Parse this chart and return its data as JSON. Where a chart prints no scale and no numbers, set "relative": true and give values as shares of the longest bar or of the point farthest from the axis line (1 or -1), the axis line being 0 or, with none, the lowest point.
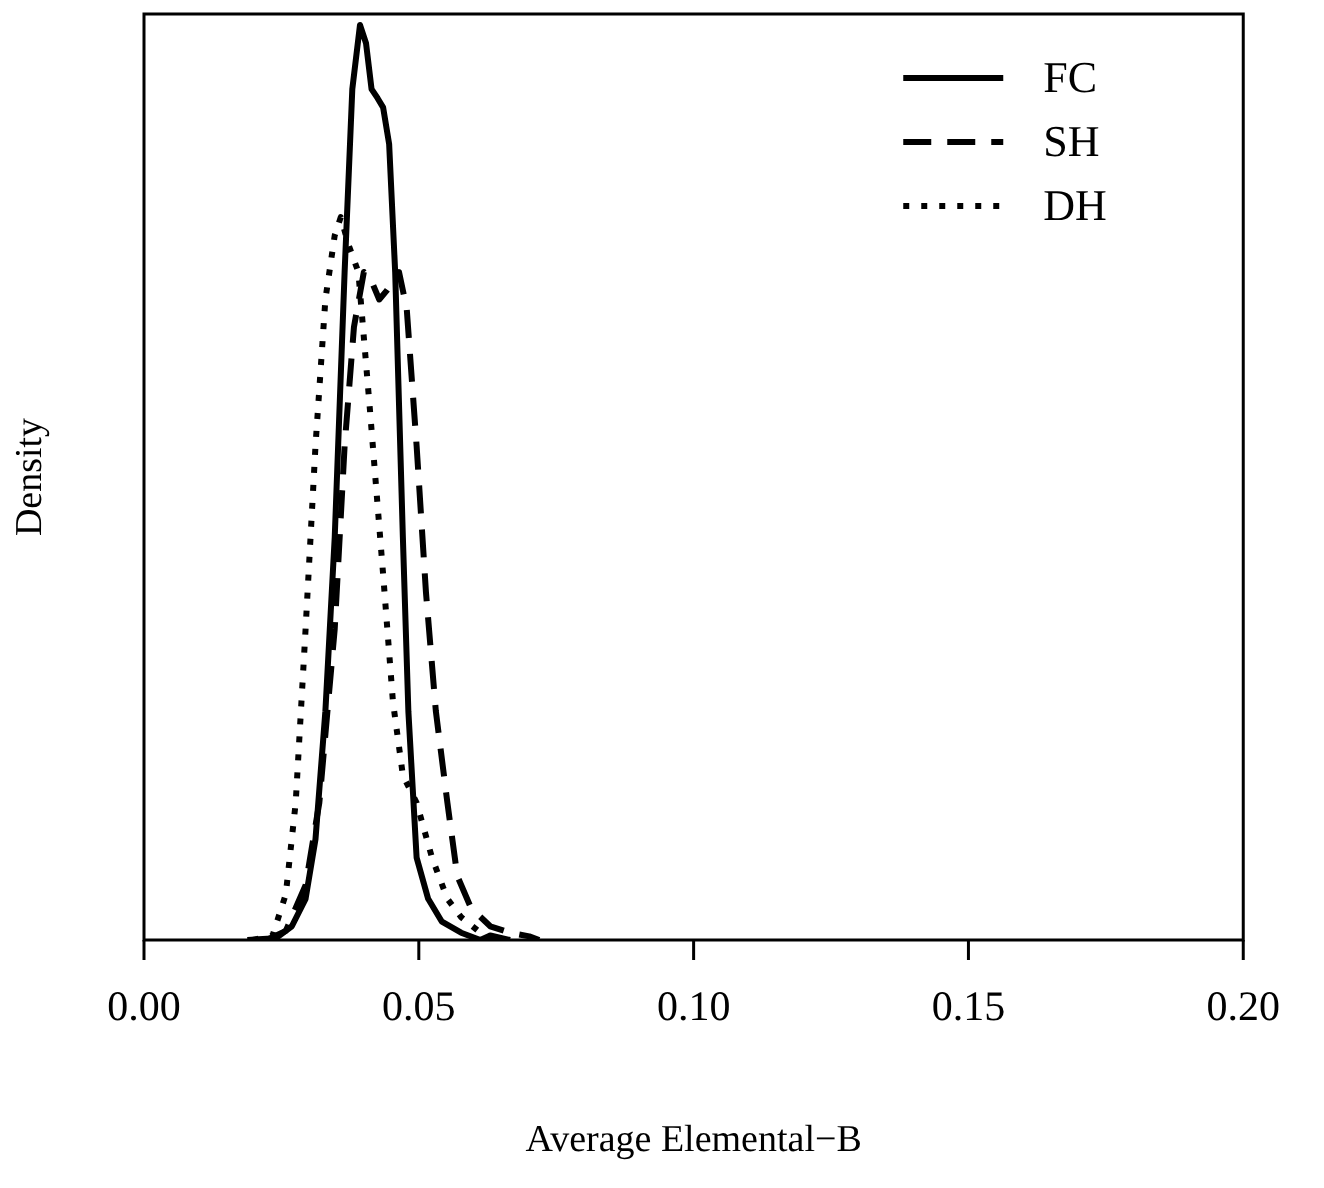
{
  "chart_data": {
    "type": "line",
    "xlabel": "Average Elemental−B",
    "ylabel": "Density",
    "relative": true,
    "xlim": [
      0,
      0.2
    ],
    "xticks": [
      {
        "value": 0,
        "label": "0.00"
      },
      {
        "value": 0.05,
        "label": "0.05"
      },
      {
        "value": 0.1,
        "label": "0.10"
      },
      {
        "value": 0.15,
        "label": "0.15"
      },
      {
        "value": 0.2,
        "label": "0.20"
      }
    ],
    "legend": "top right",
    "grid": false,
    "marker": "none",
    "series": [
      {
        "name": "FC",
        "color": "#000000",
        "line_style": "solid",
        "x": [
          0.0188,
          0.024,
          0.0269,
          0.0294,
          0.0312,
          0.033,
          0.0347,
          0.0365,
          0.0379,
          0.0393,
          0.0404,
          0.0414,
          0.0425,
          0.0435,
          0.0446,
          0.0457,
          0.0471,
          0.0481,
          0.0496,
          0.0517,
          0.0542,
          0.0577,
          0.0612,
          0.063,
          0.0666
        ],
        "values": [
          0,
          0.002,
          0.015,
          0.045,
          0.11,
          0.25,
          0.44,
          0.73,
          0.93,
          1,
          0.98,
          0.93,
          0.92,
          0.91,
          0.87,
          0.73,
          0.44,
          0.25,
          0.09,
          0.045,
          0.02,
          0.008,
          0,
          0.005,
          0
        ]
      },
      {
        "name": "SH",
        "color": "#000000",
        "line_style": "dashed",
        "x": [
          0.0223,
          0.0258,
          0.0294,
          0.0319,
          0.0347,
          0.0365,
          0.0382,
          0.04,
          0.0414,
          0.0428,
          0.0442,
          0.0464,
          0.0478,
          0.0496,
          0.0513,
          0.0531,
          0.0552,
          0.057,
          0.0595,
          0.063,
          0.0666,
          0.0701,
          0.0719
        ],
        "values": [
          0,
          0.01,
          0.06,
          0.15,
          0.34,
          0.54,
          0.67,
          0.73,
          0.72,
          0.7,
          0.71,
          0.73,
          0.69,
          0.54,
          0.38,
          0.25,
          0.15,
          0.07,
          0.035,
          0.015,
          0.008,
          0.004,
          0
        ]
      },
      {
        "name": "DH",
        "color": "#000000",
        "line_style": "dotted",
        "x": [
          0.0198,
          0.0234,
          0.0258,
          0.0276,
          0.0294,
          0.0312,
          0.033,
          0.0347,
          0.0358,
          0.0372,
          0.039,
          0.0411,
          0.0435,
          0.0453,
          0.0471,
          0.0496,
          0.0524,
          0.0552,
          0.0577,
          0.0612,
          0.0648
        ],
        "values": [
          0,
          0.005,
          0.05,
          0.15,
          0.34,
          0.54,
          0.7,
          0.77,
          0.79,
          0.76,
          0.73,
          0.58,
          0.4,
          0.26,
          0.18,
          0.15,
          0.09,
          0.045,
          0.025,
          0.008,
          0
        ]
      }
    ]
  }
}
